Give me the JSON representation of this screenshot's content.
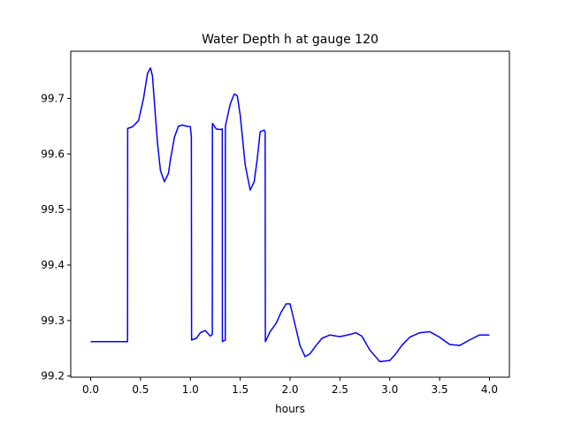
{
  "chart_data": {
    "type": "line",
    "title": "Water Depth h at gauge 120",
    "xlabel": "hours",
    "ylabel": "",
    "xlim": [
      -0.2,
      4.2
    ],
    "ylim": [
      99.198,
      99.785
    ],
    "grid": false,
    "xticks": [
      0.0,
      0.5,
      1.0,
      1.5,
      2.0,
      2.5,
      3.0,
      3.5,
      4.0
    ],
    "xtick_labels": [
      "0.0",
      "0.5",
      "1.0",
      "1.5",
      "2.0",
      "2.5",
      "3.0",
      "3.5",
      "4.0"
    ],
    "yticks": [
      99.2,
      99.3,
      99.4,
      99.5,
      99.6,
      99.7
    ],
    "ytick_labels": [
      "99.2",
      "99.3",
      "99.4",
      "99.5",
      "99.6",
      "99.7"
    ],
    "series": [
      {
        "color": "#0000ff",
        "x": [
          0.0,
          0.37,
          0.371,
          0.42,
          0.48,
          0.53,
          0.57,
          0.6,
          0.62,
          0.64,
          0.67,
          0.7,
          0.74,
          0.78,
          0.8,
          0.84,
          0.88,
          0.92,
          0.96,
          1.0,
          1.01,
          1.012,
          1.06,
          1.1,
          1.15,
          1.2,
          1.22,
          1.221,
          1.26,
          1.3,
          1.32,
          1.321,
          1.35,
          1.351,
          1.4,
          1.44,
          1.47,
          1.5,
          1.55,
          1.6,
          1.64,
          1.67,
          1.7,
          1.74,
          1.75,
          1.752,
          1.8,
          1.86,
          1.91,
          1.96,
          2.0,
          2.04,
          2.1,
          2.15,
          2.2,
          2.26,
          2.32,
          2.4,
          2.5,
          2.6,
          2.66,
          2.72,
          2.8,
          2.9,
          3.0,
          3.06,
          3.12,
          3.2,
          3.3,
          3.4,
          3.5,
          3.6,
          3.7,
          3.8,
          3.9,
          4.0
        ],
        "y": [
          99.262,
          99.262,
          99.646,
          99.649,
          99.66,
          99.7,
          99.745,
          99.755,
          99.74,
          99.69,
          99.62,
          99.57,
          99.55,
          99.565,
          99.59,
          99.63,
          99.65,
          99.652,
          99.65,
          99.649,
          99.63,
          99.265,
          99.268,
          99.278,
          99.282,
          99.272,
          99.275,
          99.655,
          99.645,
          99.644,
          99.645,
          99.262,
          99.265,
          99.65,
          99.69,
          99.708,
          99.705,
          99.67,
          99.58,
          99.535,
          99.55,
          99.59,
          99.64,
          99.643,
          99.64,
          99.262,
          99.28,
          99.295,
          99.315,
          99.33,
          99.33,
          99.3,
          99.255,
          99.235,
          99.24,
          99.255,
          99.268,
          99.274,
          99.271,
          99.275,
          99.278,
          99.272,
          99.247,
          99.226,
          99.228,
          99.24,
          99.255,
          99.27,
          99.278,
          99.28,
          99.27,
          99.257,
          99.255,
          99.265,
          99.274,
          99.274
        ]
      }
    ]
  }
}
